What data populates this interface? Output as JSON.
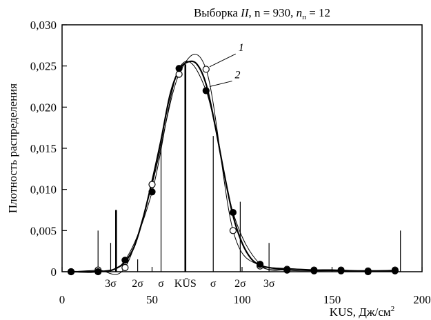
{
  "chart_data": {
    "type": "line",
    "title": "Выборка II, n = 930, nп = 12",
    "title_parts": {
      "prefix": "Выборка ",
      "roman": "II",
      "n_part": ", n = 930, ",
      "np_sym": "n",
      "np_sub": "п",
      "np_value": " = 12"
    },
    "xlabel": "KUS, Дж/см²",
    "xlabel_parts": {
      "main": "KUS, Дж/см",
      "sup": "2"
    },
    "ylabel": "Плотность распределения",
    "xlim": [
      0,
      200
    ],
    "ylim": [
      0,
      0.03
    ],
    "x_ticks": [
      0,
      50,
      100,
      150,
      200
    ],
    "x_tick_labels": [
      "0",
      "50",
      "100",
      "150",
      "200"
    ],
    "y_ticks": [
      0,
      0.005,
      0.01,
      0.015,
      0.02,
      0.025,
      0.03
    ],
    "y_tick_labels": [
      "0",
      "0,005",
      "0,010",
      "0,015",
      "0,020",
      "0,025",
      "0,030"
    ],
    "grid": false,
    "series": [
      {
        "name": "1",
        "marker": "open-circle",
        "x": [
          5,
          20,
          35,
          50,
          65,
          80,
          95,
          110,
          125,
          140,
          155,
          170,
          185
        ],
        "y": [
          0.0,
          0.0002,
          0.0005,
          0.0106,
          0.024,
          0.0246,
          0.005,
          0.0007,
          0.0003,
          0.0002,
          0.0002,
          0.0001,
          0.0002
        ]
      },
      {
        "name": "2",
        "marker": "filled-circle",
        "x": [
          5,
          20,
          35,
          50,
          65,
          80,
          95,
          110,
          125,
          140,
          155,
          170,
          185
        ],
        "y": [
          0.0,
          0.0,
          0.0014,
          0.0097,
          0.0247,
          0.022,
          0.0072,
          0.0009,
          0.0002,
          0.0001,
          0.0001,
          0.0,
          0.0001
        ]
      }
    ],
    "curve": {
      "x": [
        5,
        15,
        25,
        30,
        35,
        40,
        45,
        50,
        55,
        60,
        65,
        70,
        75,
        80,
        85,
        90,
        95,
        100,
        105,
        110,
        115,
        120,
        130,
        140,
        150,
        160,
        170,
        185
      ],
      "y": [
        0.0,
        0.0,
        0.0001,
        0.0004,
        0.0012,
        0.003,
        0.0065,
        0.011,
        0.016,
        0.0215,
        0.0245,
        0.0255,
        0.0252,
        0.0228,
        0.0178,
        0.012,
        0.0068,
        0.0035,
        0.0016,
        0.0008,
        0.0005,
        0.0004,
        0.0003,
        0.0002,
        0.0002,
        0.0001,
        0.0001,
        0.0001
      ]
    },
    "vertical_lines": [
      {
        "x": 20,
        "y": 0.005
      },
      {
        "x": 27,
        "y": 0.0035
      },
      {
        "x": 30,
        "y": 0.0075,
        "thick": true
      },
      {
        "x": 42,
        "y": 0.0015
      },
      {
        "x": 55,
        "y": 0.0152
      },
      {
        "x": 68.5,
        "y": 0.0252,
        "thick": true
      },
      {
        "x": 84,
        "y": 0.0165
      },
      {
        "x": 99,
        "y": 0.0085
      },
      {
        "x": 115,
        "y": 0.0035
      },
      {
        "x": 188,
        "y": 0.005
      }
    ],
    "sigma_labels": [
      {
        "text": "3σ",
        "x": 27
      },
      {
        "text": "2σ",
        "x": 42
      },
      {
        "text": "σ",
        "x": 55
      },
      {
        "text": "KŪS",
        "x": 68.5
      },
      {
        "text": "σ",
        "x": 84
      },
      {
        "text": "2σ",
        "x": 99
      },
      {
        "text": "3σ",
        "x": 115
      }
    ],
    "series_labels": [
      {
        "text": "1",
        "x": 98,
        "y": 0.0268,
        "leader_to": [
          82,
          0.0249
        ]
      },
      {
        "text": "2",
        "x": 96,
        "y": 0.0235,
        "leader_to": [
          82,
          0.0225
        ]
      }
    ]
  }
}
